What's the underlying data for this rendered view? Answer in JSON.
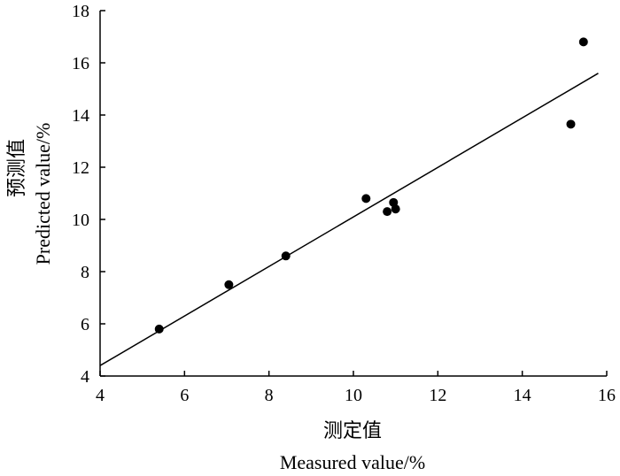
{
  "chart_data": {
    "type": "scatter",
    "xlabel_cn": "测定值",
    "xlabel": "Measured value/%",
    "ylabel_cn": "预测值",
    "ylabel": "Predicted value/%",
    "xlim": [
      4,
      16
    ],
    "ylim": [
      4,
      18
    ],
    "xticks": [
      4,
      6,
      8,
      10,
      12,
      14,
      16
    ],
    "yticks": [
      4,
      6,
      8,
      10,
      12,
      14,
      16,
      18
    ],
    "grid": false,
    "points": [
      {
        "x": 5.4,
        "y": 5.8
      },
      {
        "x": 7.05,
        "y": 7.5
      },
      {
        "x": 8.4,
        "y": 8.6
      },
      {
        "x": 10.3,
        "y": 10.8
      },
      {
        "x": 10.8,
        "y": 10.3
      },
      {
        "x": 10.95,
        "y": 10.65
      },
      {
        "x": 11.0,
        "y": 10.4
      },
      {
        "x": 15.15,
        "y": 13.65
      },
      {
        "x": 15.45,
        "y": 16.8
      }
    ],
    "fit_line": {
      "x1": 4.0,
      "y1": 4.4,
      "x2": 15.8,
      "y2": 15.6
    },
    "colors": {
      "marker": "#000000",
      "line": "#000000",
      "axis": "#000000"
    }
  }
}
